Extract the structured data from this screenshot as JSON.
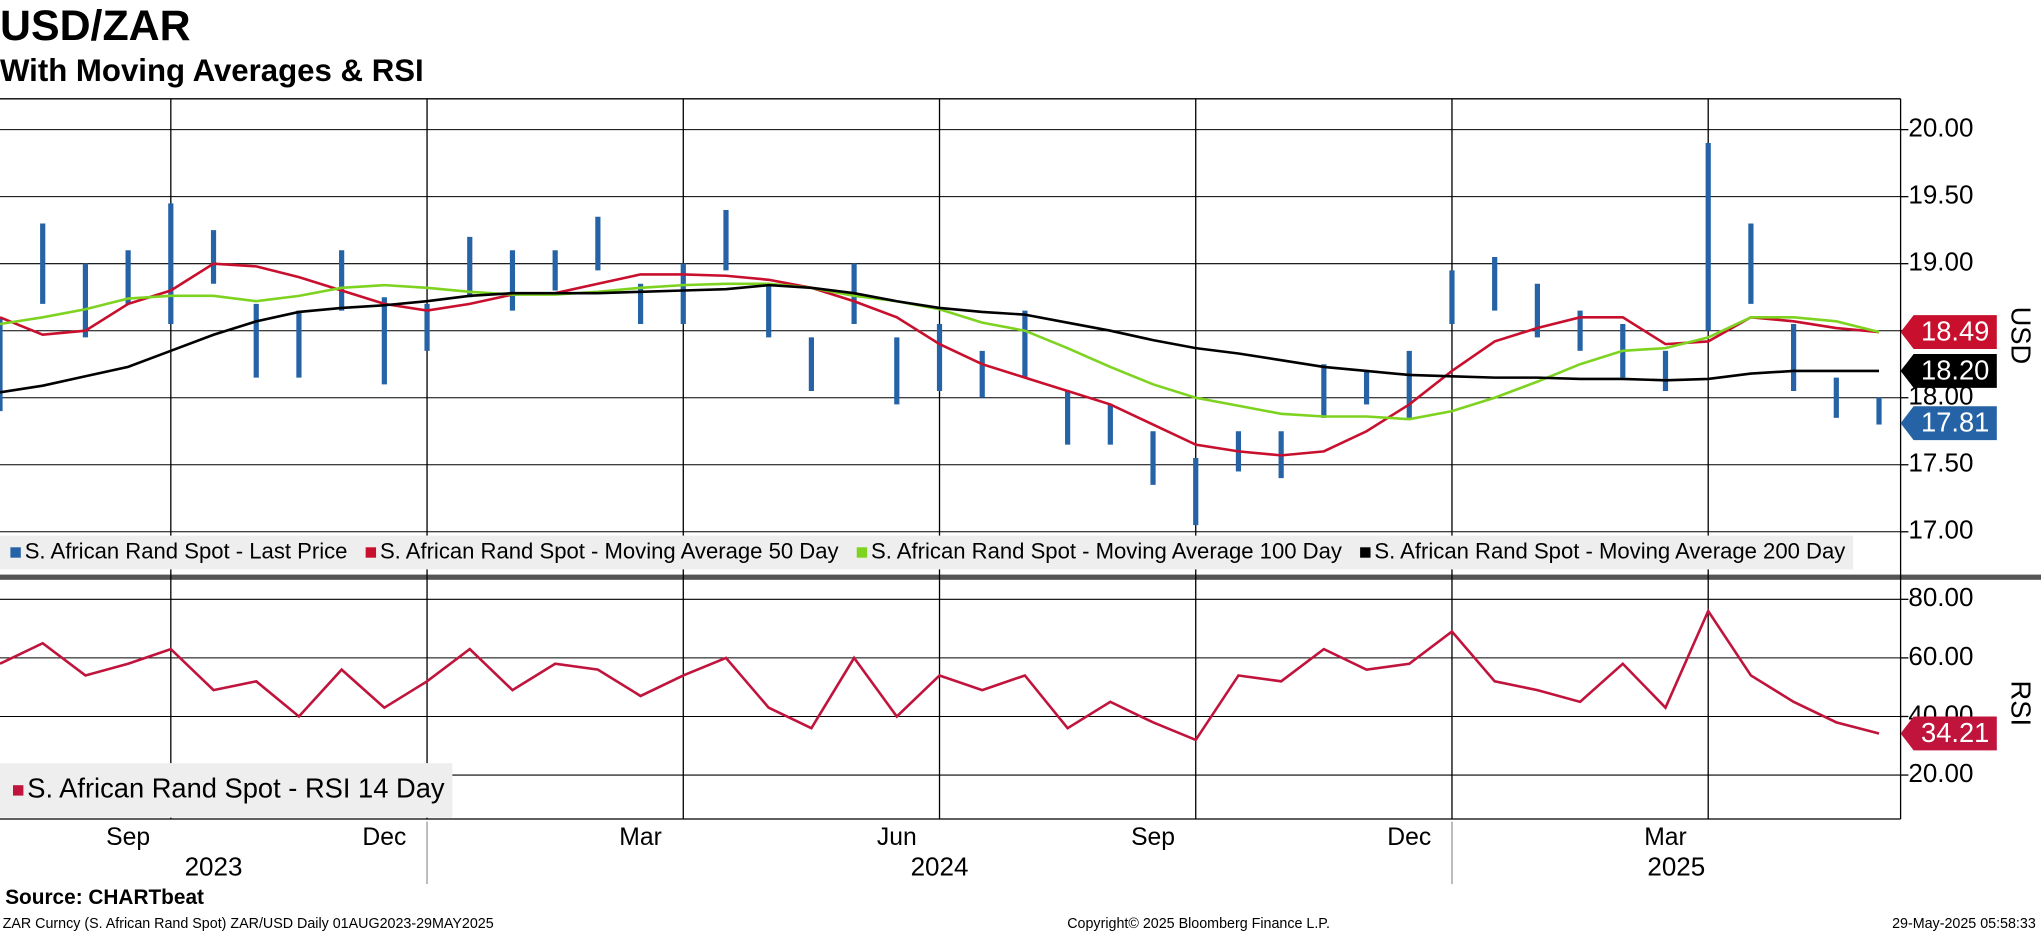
{
  "chart_data": [
    {
      "type": "hilo",
      "title": "USD/ZAR",
      "subtitle": "With Moving Averages & RSI",
      "axis_label": "USD",
      "ylim": [
        16.7,
        20.23
      ],
      "yticks": [
        {
          "value": 17,
          "label": "17.00"
        },
        {
          "value": 17.5,
          "label": "17.50"
        },
        {
          "value": 18,
          "label": "18.00"
        },
        {
          "value": 18.5,
          "label": "18.50"
        },
        {
          "value": 19,
          "label": "19.00"
        },
        {
          "value": 19.5,
          "label": "19.50"
        },
        {
          "value": 20,
          "label": "20.00"
        }
      ],
      "grid": true,
      "legend": "lower left",
      "series": [
        {
          "name": "S. African Rand Spot - Last Price",
          "color": "#2563a6",
          "tag": true,
          "last": 17.81,
          "high": [
            18.6,
            19.3,
            19.0,
            19.1,
            19.45,
            19.25,
            18.7,
            18.65,
            19.1,
            18.75,
            18.7,
            19.2,
            19.1,
            19.1,
            19.35,
            18.85,
            19.0,
            19.4,
            18.85,
            18.45,
            19.0,
            18.45,
            18.55,
            18.35,
            18.65,
            18.05,
            17.95,
            17.75,
            17.55,
            17.75,
            17.75,
            18.25,
            18.2,
            18.35,
            18.95,
            19.05,
            18.85,
            18.65,
            18.55,
            18.35,
            19.9,
            19.3,
            18.55,
            18.15,
            18.0
          ],
          "low": [
            17.9,
            18.7,
            18.45,
            18.7,
            18.55,
            18.85,
            18.15,
            18.15,
            18.65,
            18.1,
            18.35,
            18.75,
            18.65,
            18.8,
            18.95,
            18.55,
            18.55,
            18.95,
            18.45,
            18.05,
            18.55,
            17.95,
            18.05,
            18.0,
            18.15,
            17.65,
            17.65,
            17.35,
            17.05,
            17.45,
            17.4,
            17.85,
            17.95,
            17.85,
            18.55,
            18.65,
            18.45,
            18.35,
            18.15,
            18.05,
            18.5,
            18.7,
            18.05,
            17.85,
            17.8
          ]
        },
        {
          "name": "S. African Rand Spot - Moving Average 50 Day",
          "color": "#c8102e",
          "tag": true,
          "values": [
            18.6,
            18.47,
            18.5,
            18.7,
            18.8,
            19.0,
            18.98,
            18.9,
            18.8,
            18.7,
            18.65,
            18.7,
            18.77,
            18.78,
            18.85,
            18.92,
            18.92,
            18.91,
            18.88,
            18.82,
            18.72,
            18.6,
            18.4,
            18.25,
            18.15,
            18.05,
            17.95,
            17.8,
            17.65,
            17.6,
            17.57,
            17.6,
            17.75,
            17.95,
            18.2,
            18.42,
            18.52,
            18.6,
            18.6,
            18.4,
            18.42,
            18.6,
            18.57,
            18.52,
            18.49
          ]
        },
        {
          "name": "S. African Rand Spot - Moving Average 100 Day",
          "color": "#7ed321",
          "tag": false,
          "values": [
            18.55,
            18.6,
            18.66,
            18.74,
            18.76,
            18.76,
            18.72,
            18.76,
            18.82,
            18.84,
            18.82,
            18.79,
            18.77,
            18.77,
            18.79,
            18.82,
            18.84,
            18.85,
            18.85,
            18.82,
            18.76,
            18.72,
            18.66,
            18.56,
            18.5,
            18.37,
            18.23,
            18.1,
            18.0,
            17.94,
            17.88,
            17.86,
            17.86,
            17.84,
            17.9,
            18.0,
            18.12,
            18.25,
            18.35,
            18.37,
            18.45,
            18.6,
            18.6,
            18.57,
            18.49
          ]
        },
        {
          "name": "S. African Rand Spot - Moving Average 200 Day",
          "color": "#000000",
          "tag": true,
          "last_label": "18.20",
          "values": [
            18.04,
            18.09,
            18.16,
            18.23,
            18.35,
            18.47,
            18.57,
            18.64,
            18.67,
            18.69,
            18.72,
            18.76,
            18.78,
            18.78,
            18.78,
            18.79,
            18.8,
            18.81,
            18.84,
            18.82,
            18.78,
            18.72,
            18.67,
            18.64,
            18.62,
            18.56,
            18.5,
            18.43,
            18.37,
            18.33,
            18.28,
            18.23,
            18.2,
            18.17,
            18.16,
            18.15,
            18.15,
            18.14,
            18.14,
            18.13,
            18.14,
            18.18,
            18.2,
            18.2,
            18.2
          ]
        }
      ]
    },
    {
      "type": "line",
      "axis_label": "RSI",
      "ylim": [
        5,
        84
      ],
      "yticks": [
        {
          "value": 20,
          "label": "20.00"
        },
        {
          "value": 40,
          "label": "40.00"
        },
        {
          "value": 60,
          "label": "60.00"
        },
        {
          "value": 80,
          "label": "80.00"
        }
      ],
      "grid": true,
      "legend": "lower left",
      "categories": [
        null,
        null,
        null,
        "Sep",
        null,
        null,
        null,
        null,
        null,
        "Dec",
        null,
        null,
        null,
        null,
        null,
        "Mar",
        null,
        null,
        null,
        null,
        null,
        "Jun",
        null,
        null,
        null,
        null,
        null,
        "Sep",
        null,
        null,
        null,
        null,
        null,
        "Dec",
        null,
        null,
        null,
        null,
        null,
        "Mar",
        null,
        null,
        null,
        null,
        null
      ],
      "years": [
        "2023",
        "2024",
        "2025"
      ],
      "series": [
        {
          "name": "S. African Rand Spot - RSI 14 Day",
          "color": "#c0143c",
          "tag": true,
          "values": [
            58,
            65,
            54,
            58,
            63,
            49,
            52,
            40,
            56,
            43,
            52,
            63,
            49,
            58,
            56,
            47,
            54,
            60,
            43,
            36,
            60,
            40,
            54,
            49,
            54,
            36,
            45,
            38,
            32,
            54,
            52,
            63,
            56,
            58,
            69,
            52,
            49,
            45,
            58,
            43,
            76,
            54,
            45,
            38,
            34.21
          ]
        }
      ]
    }
  ],
  "footer": {
    "source": "Source: CHARTbeat",
    "description": "ZAR Curncy (S. African Rand Spot) ZAR/USD  Daily 01AUG2023-29MAY2025",
    "copyright": "Copyright© 2025 Bloomberg Finance L.P.",
    "timestamp": "29-May-2025 05:58:33"
  }
}
